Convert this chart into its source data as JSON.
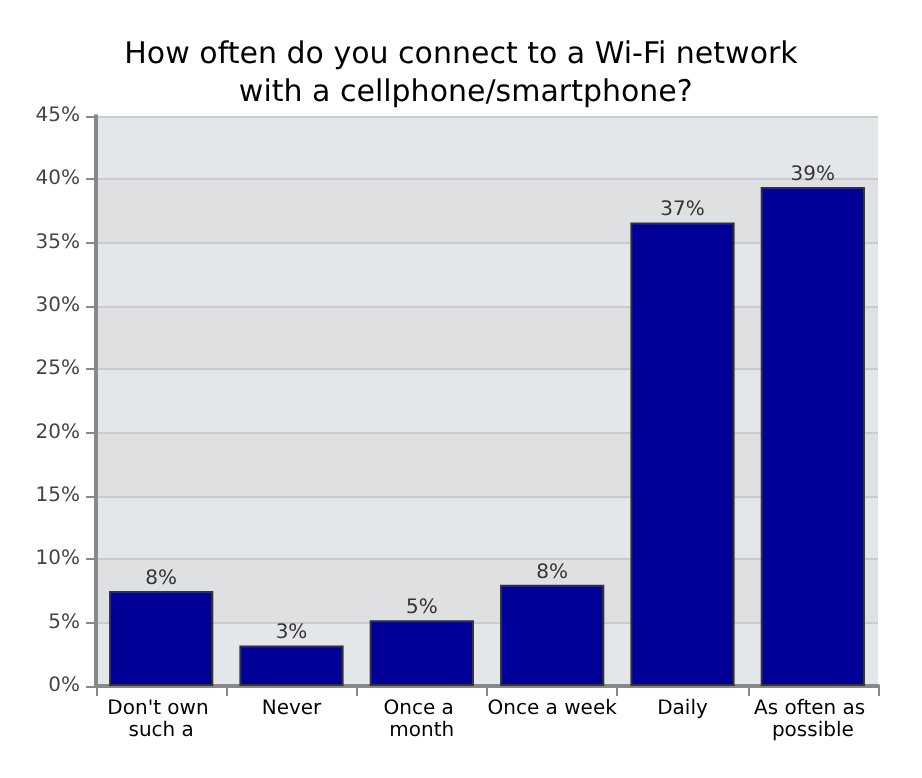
{
  "chart_data": {
    "type": "bar",
    "title": "How often do you connect to a Wi-Fi network with a cellphone/smartphone?",
    "categories": [
      "Don't own such a",
      "Never",
      "Once a month",
      "Once a week",
      "Daily",
      "As often as possible"
    ],
    "values": [
      7.5,
      3.2,
      5.2,
      8.0,
      36.6,
      39.4
    ],
    "value_labels": [
      "8%",
      "3%",
      "5%",
      "8%",
      "37%",
      "39%"
    ],
    "color": "#000099",
    "ylim": [
      0,
      45
    ],
    "yticks": [
      {
        "value": 0,
        "label": "0%"
      },
      {
        "value": 5,
        "label": "5%"
      },
      {
        "value": 10,
        "label": "10%"
      },
      {
        "value": 15,
        "label": "15%"
      },
      {
        "value": 20,
        "label": "20%"
      },
      {
        "value": 25,
        "label": "25%"
      },
      {
        "value": 30,
        "label": "30%"
      },
      {
        "value": 35,
        "label": "35%"
      },
      {
        "value": 40,
        "label": "40%"
      },
      {
        "value": 45,
        "label": "45%"
      }
    ],
    "grid": "y"
  }
}
